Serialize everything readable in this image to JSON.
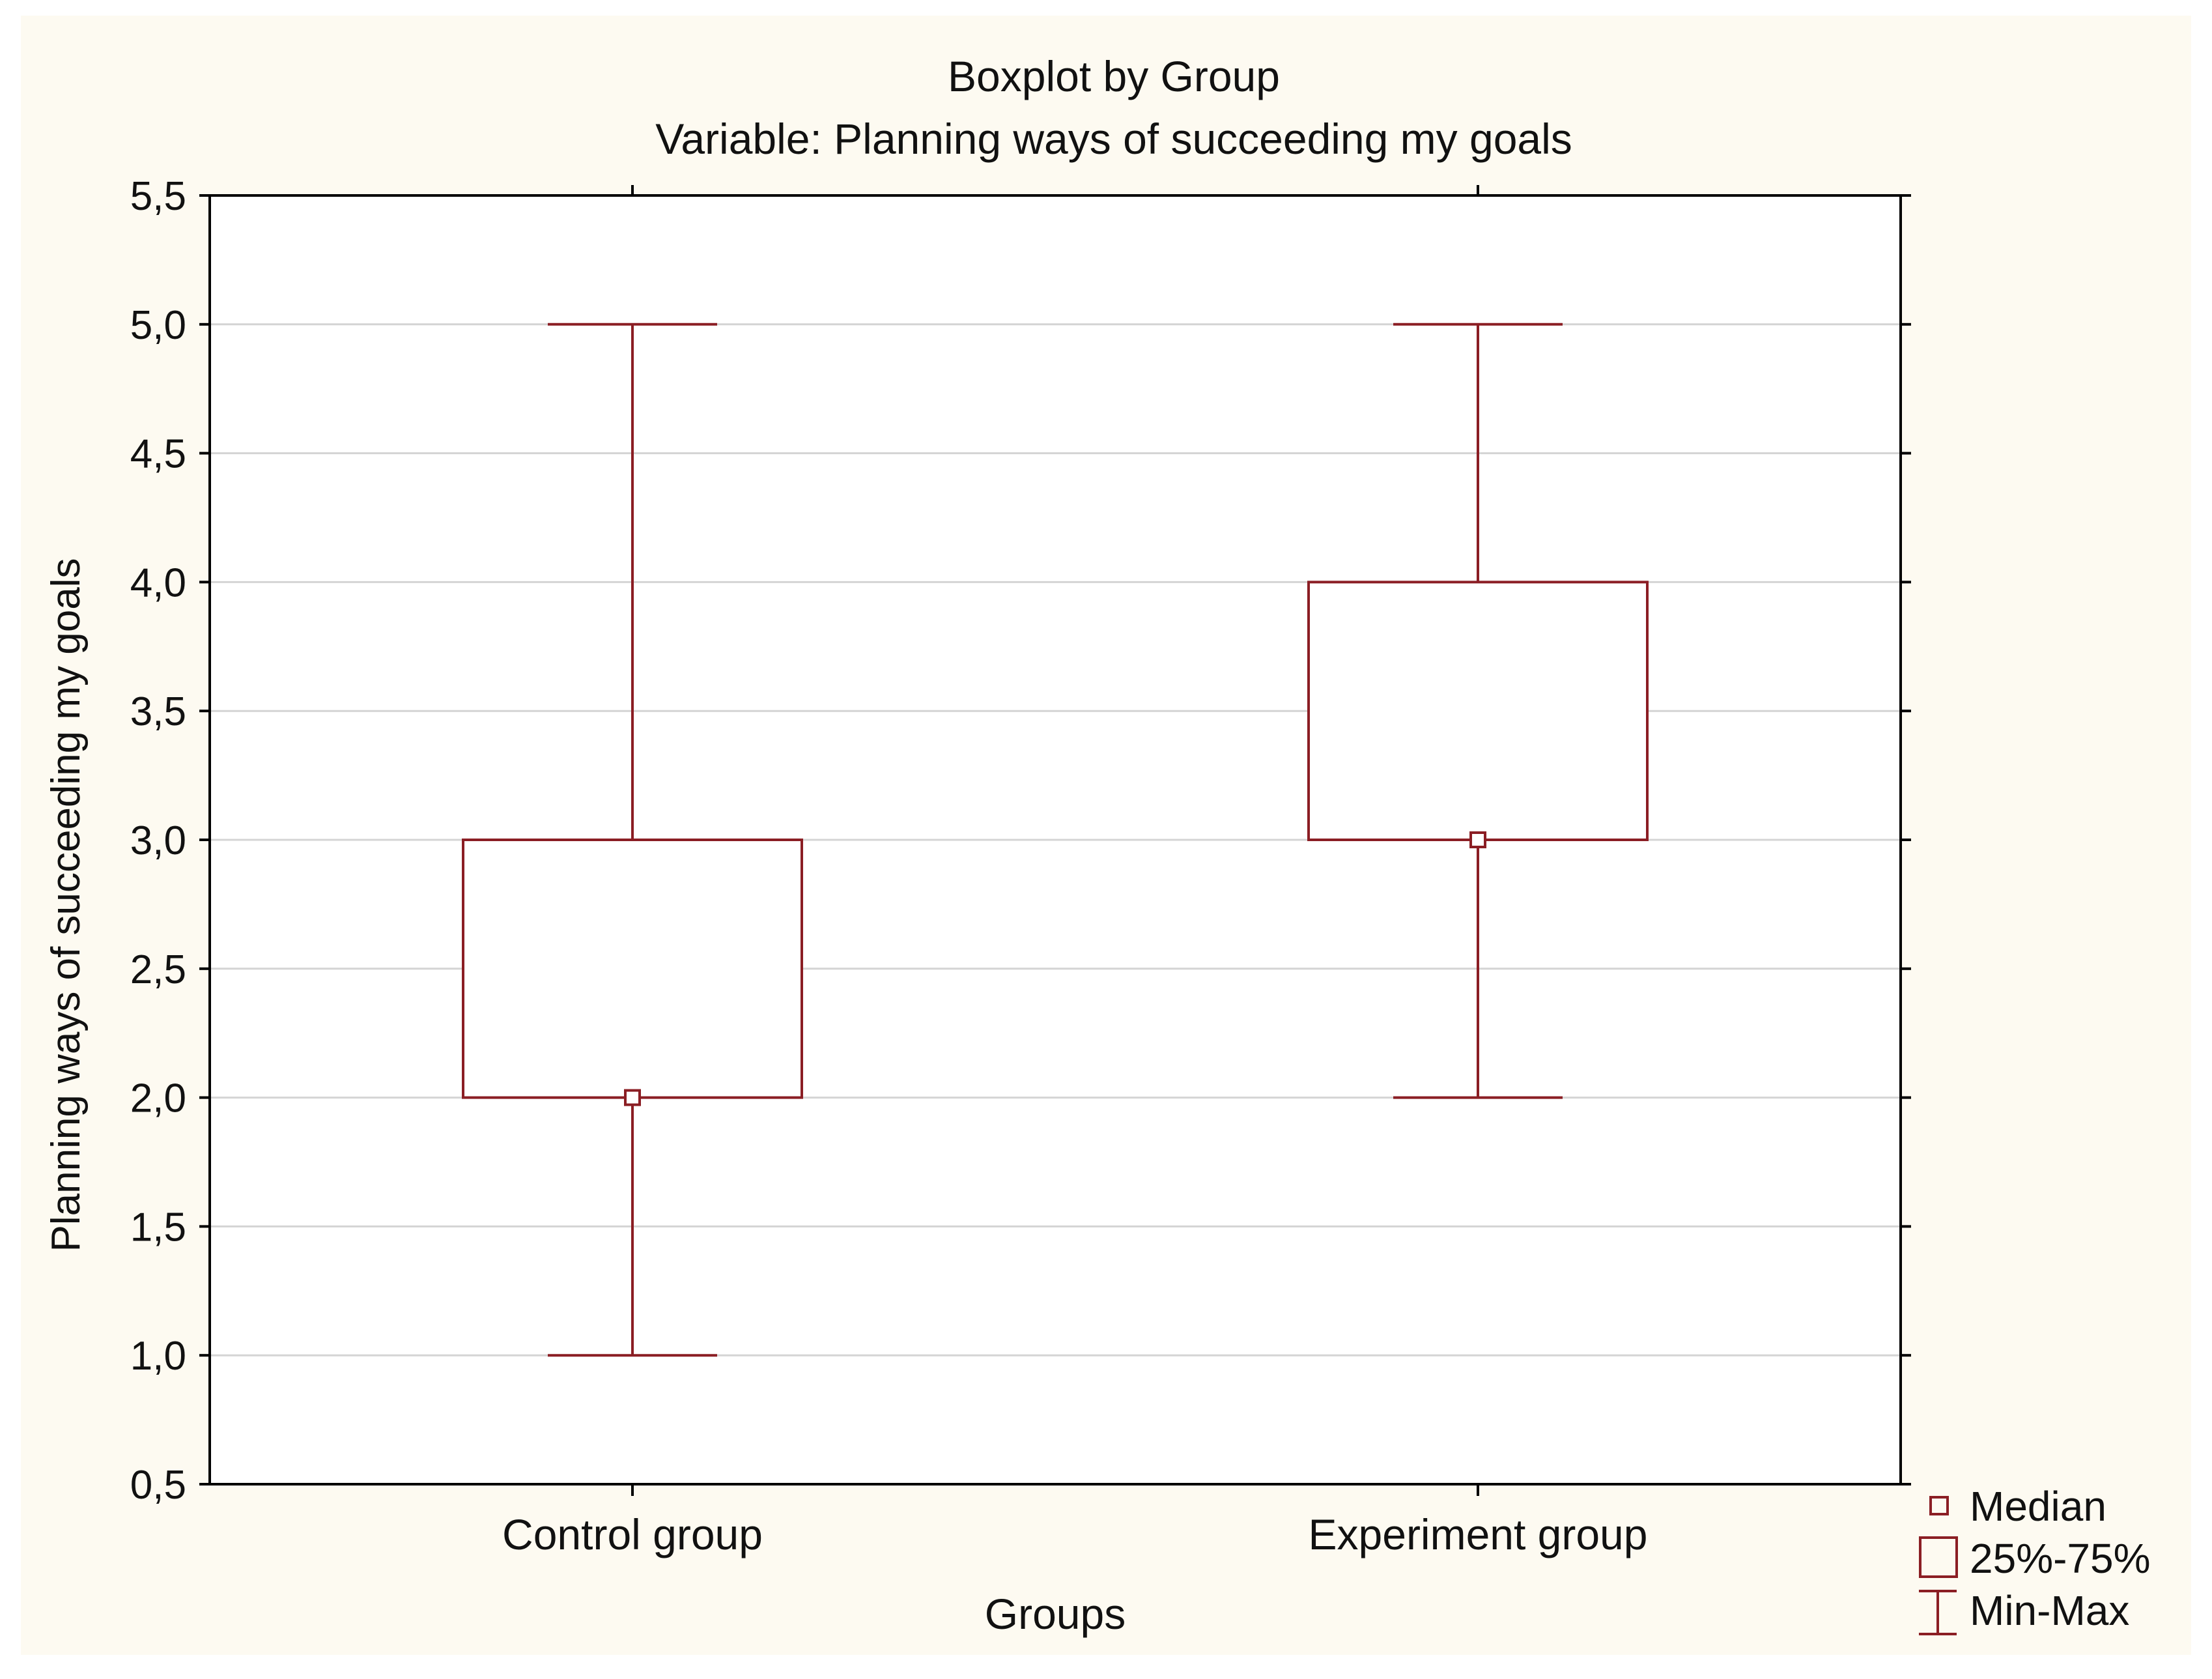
{
  "chart_data": {
    "type": "boxplot",
    "title": "Boxplot by Group",
    "subtitle": "Variable: Planning ways of succeeding my goals",
    "xlabel": "Groups",
    "ylabel": "Planning ways of succeeding my goals",
    "ylim": [
      0.5,
      5.5
    ],
    "yticks": [
      "0,5",
      "1,0",
      "1,5",
      "2,0",
      "2,5",
      "3,0",
      "3,5",
      "4,0",
      "4,5",
      "5,0",
      "5,5"
    ],
    "grid": true,
    "categories": [
      "Control group",
      "Experiment group"
    ],
    "boxes": [
      {
        "name": "Control group",
        "min": 1.0,
        "q1": 2.0,
        "median": 2.0,
        "q3": 3.0,
        "max": 5.0
      },
      {
        "name": "Experiment group",
        "min": 2.0,
        "q1": 3.0,
        "median": 3.0,
        "q3": 4.0,
        "max": 5.0
      }
    ],
    "legend": {
      "placement": "bottom-right",
      "items": [
        {
          "symbol": "median",
          "label": "Median"
        },
        {
          "symbol": "box",
          "label": "25%-75%"
        },
        {
          "symbol": "whisker",
          "label": "Min-Max"
        }
      ]
    },
    "colors": {
      "series": "#8b1e24",
      "background": "#fdfaf1",
      "grid": "#d4d4d4",
      "axis": "#000000",
      "text": "#111111"
    }
  }
}
